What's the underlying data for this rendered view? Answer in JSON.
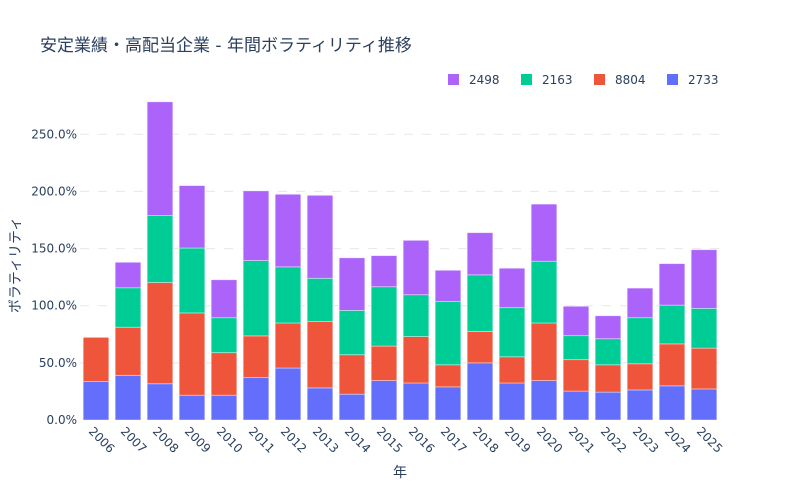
{
  "chart_data": {
    "type": "bar",
    "barmode": "stack",
    "title": "安定業績・高配当企業 - 年間ボラティリティ推移",
    "xlabel": "年",
    "ylabel": "ボラティリティ",
    "ylim": [
      0,
      280
    ],
    "y_tick_values": [
      0,
      50,
      100,
      150,
      200,
      250
    ],
    "y_tick_labels": [
      "0.0%",
      "50.0%",
      "100.0%",
      "150.0%",
      "200.0%",
      "250.0%"
    ],
    "grid": true,
    "legend_position": "top-right",
    "categories": [
      "2006",
      "2007",
      "2008",
      "2009",
      "2010",
      "2011",
      "2012",
      "2013",
      "2014",
      "2015",
      "2016",
      "2017",
      "2018",
      "2019",
      "2020",
      "2021",
      "2022",
      "2023",
      "2024",
      "2025"
    ],
    "series": [
      {
        "name": "2733",
        "color": "#636efa",
        "values": [
          33.6,
          39.1,
          31.7,
          21.7,
          21.7,
          37.2,
          45.5,
          28.1,
          22.6,
          34.5,
          32.4,
          29.0,
          50.0,
          32.4,
          34.5,
          25.3,
          24.4,
          26.3,
          29.9,
          27.2
        ]
      },
      {
        "name": "8804",
        "color": "#ef553b",
        "values": [
          38.7,
          42.1,
          88.6,
          72.0,
          37.2,
          36.4,
          39.4,
          58.0,
          34.5,
          30.2,
          40.6,
          19.3,
          27.5,
          22.9,
          50.4,
          27.5,
          23.9,
          22.9,
          36.7,
          35.7
        ]
      },
      {
        "name": "2163",
        "color": "#00cc96",
        "values": [
          0,
          34.5,
          58.6,
          56.8,
          30.6,
          65.9,
          49.1,
          37.9,
          38.8,
          51.9,
          36.6,
          55.5,
          49.5,
          43.0,
          54.0,
          21.0,
          22.8,
          40.3,
          33.9,
          34.8
        ]
      },
      {
        "name": "2498",
        "color": "#ab63fa",
        "values": [
          0,
          22.3,
          99.5,
          54.6,
          33.2,
          61.0,
          63.5,
          72.6,
          46.0,
          27.2,
          47.6,
          27.2,
          36.9,
          34.5,
          50.0,
          25.7,
          20.1,
          25.9,
          36.3,
          51.3
        ]
      }
    ],
    "legend_order": [
      "2498",
      "2163",
      "8804",
      "2733"
    ]
  }
}
